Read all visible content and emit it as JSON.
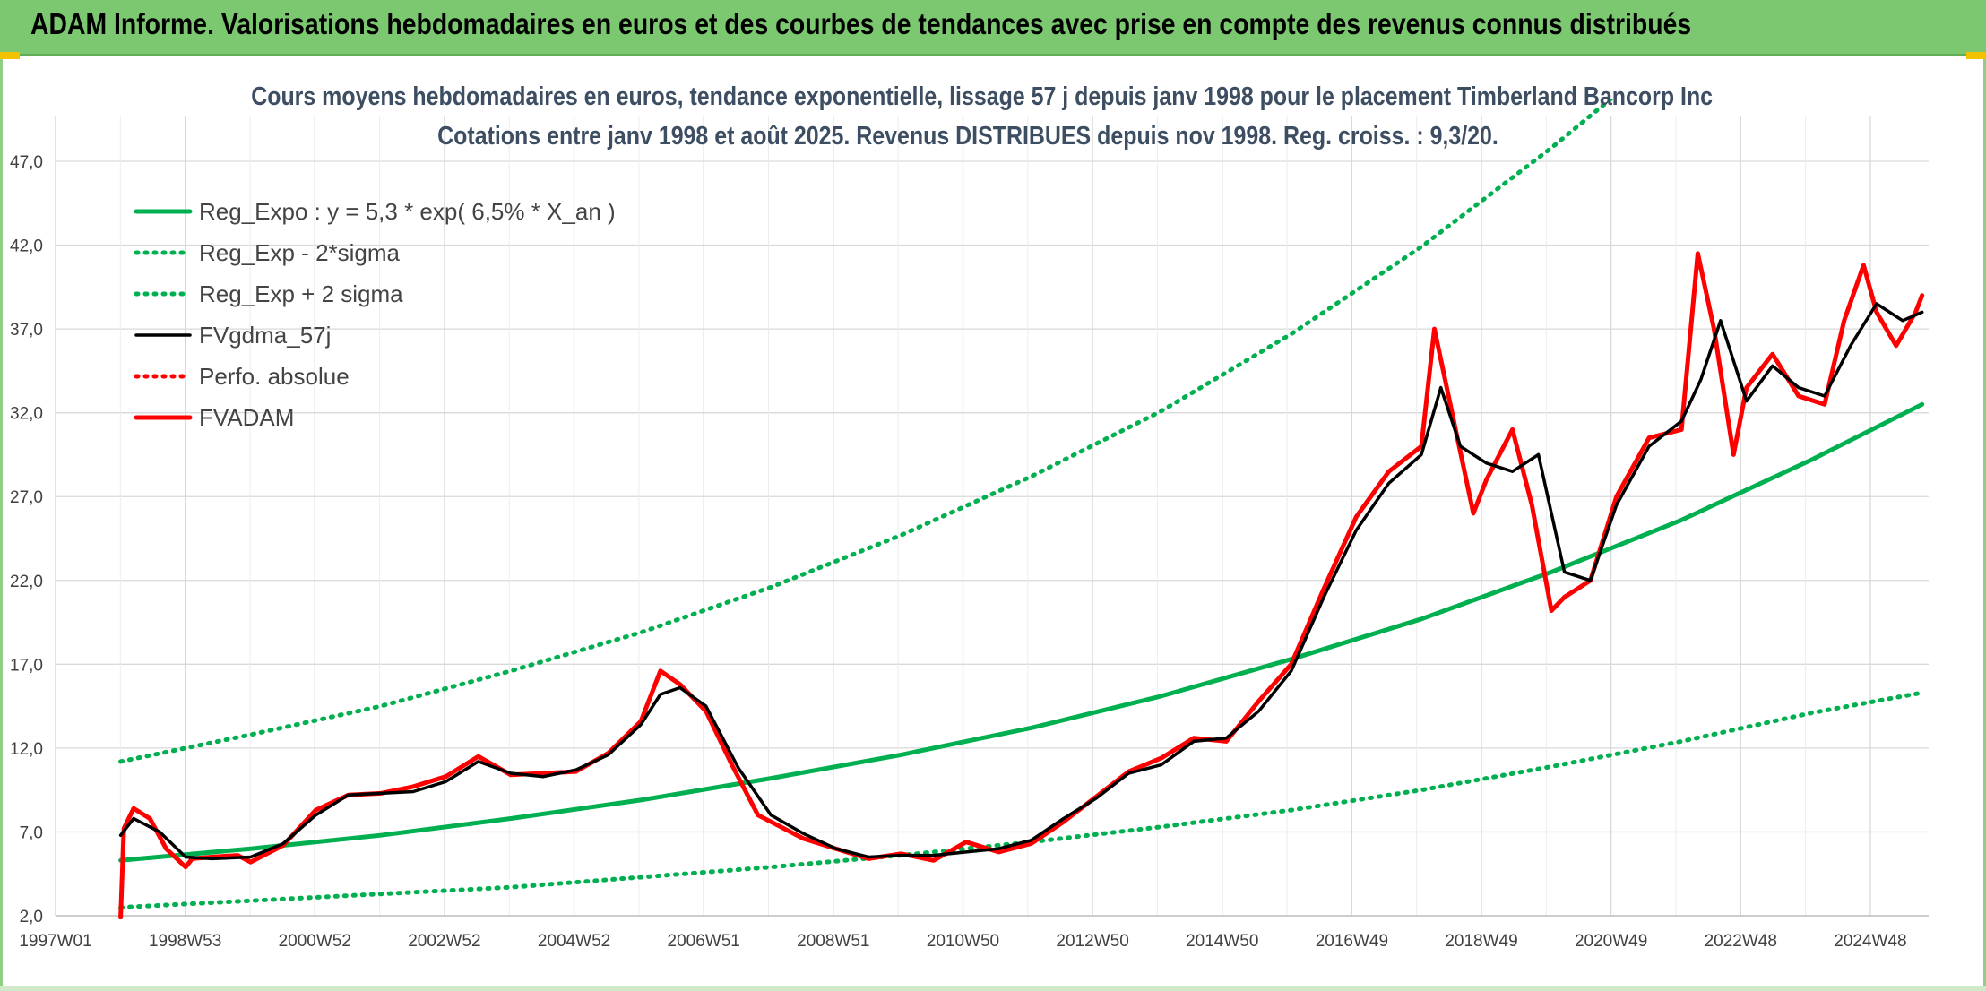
{
  "header": {
    "title": "ADAM Informe. Valorisations hebdomadaires en euros et des courbes de tendances avec prise en compte des revenus connus distribués"
  },
  "colors": {
    "header_bg": "#7cc870",
    "trend_green": "#00b050",
    "price_red": "#ff0000",
    "smoothed_black": "#000000",
    "grid": "#d9d9d9"
  },
  "chart_data": {
    "type": "line",
    "title": "Cours moyens hebdomadaires en euros, tendance exponentielle, lissage 57 j depuis janv 1998 pour le placement Timberland Bancorp Inc",
    "subtitle": "Cotations entre janv 1998 et août 2025. Revenus DISTRIBUES depuis nov 1998. Reg. croiss. : 9,3/20.",
    "xlabel": "",
    "ylabel": "",
    "x_tick_labels": [
      "1997W01",
      "1998W53",
      "2000W52",
      "2002W52",
      "2004W52",
      "2006W51",
      "2008W51",
      "2010W50",
      "2012W50",
      "2014W50",
      "2016W49",
      "2018W49",
      "2020W49",
      "2022W48",
      "2024W48"
    ],
    "y_tick_labels": [
      "2,0",
      "7,0",
      "12,0",
      "17,0",
      "22,0",
      "27,0",
      "32,0",
      "37,0",
      "42,0",
      "47,0"
    ],
    "ylim": [
      2,
      47
    ],
    "xlim": [
      1997.0,
      2025.8
    ],
    "grid": true,
    "legend_position": "top-left",
    "series": [
      {
        "name": "Reg_Expo : y = 5,3 * exp( 6,5% *  X_an )",
        "style": "solid-thick",
        "color": "#00b050",
        "x": [
          1998.0,
          2000.0,
          2002.0,
          2004.0,
          2006.0,
          2008.0,
          2010.0,
          2012.0,
          2014.0,
          2016.0,
          2018.0,
          2020.0,
          2022.0,
          2024.0,
          2025.7
        ],
        "y": [
          5.3,
          6.0,
          6.8,
          7.8,
          8.9,
          10.2,
          11.6,
          13.2,
          15.1,
          17.3,
          19.7,
          22.5,
          25.6,
          29.2,
          32.5
        ]
      },
      {
        "name": "Reg_Exp - 2*sigma",
        "style": "dotted",
        "color": "#00b050",
        "x": [
          1998.0,
          2000.0,
          2002.0,
          2004.0,
          2006.0,
          2008.0,
          2010.0,
          2012.0,
          2014.0,
          2016.0,
          2018.0,
          2020.0,
          2022.0,
          2024.0,
          2025.7
        ],
        "y": [
          2.5,
          2.9,
          3.3,
          3.7,
          4.3,
          4.9,
          5.6,
          6.4,
          7.3,
          8.3,
          9.5,
          10.9,
          12.4,
          14.1,
          15.3
        ]
      },
      {
        "name": "Reg_Exp + 2 sigma",
        "style": "dotted",
        "color": "#00b050",
        "x": [
          1998.0,
          2000.0,
          2002.0,
          2004.0,
          2006.0,
          2008.0,
          2010.0,
          2012.0,
          2014.0,
          2016.0,
          2018.0,
          2020.0,
          2021.0
        ],
        "y": [
          11.2,
          12.8,
          14.5,
          16.6,
          18.9,
          21.6,
          24.7,
          28.2,
          32.1,
          36.7,
          41.9,
          47.8,
          51.0
        ]
      },
      {
        "name": "FVgdma_57j",
        "style": "solid",
        "color": "#000000",
        "x": [
          1998.0,
          1998.2,
          1998.6,
          1999.0,
          1999.4,
          2000.0,
          2000.5,
          2001.0,
          2001.5,
          2002.0,
          2002.5,
          2003.0,
          2003.5,
          2004.0,
          2004.5,
          2005.0,
          2005.5,
          2006.0,
          2006.3,
          2006.6,
          2007.0,
          2007.5,
          2008.0,
          2008.5,
          2009.0,
          2009.5,
          2010.0,
          2010.5,
          2011.0,
          2011.5,
          2012.0,
          2012.5,
          2013.0,
          2013.5,
          2014.0,
          2014.5,
          2015.0,
          2015.5,
          2016.0,
          2016.5,
          2017.0,
          2017.5,
          2018.0,
          2018.3,
          2018.6,
          2019.0,
          2019.4,
          2019.8,
          2020.2,
          2020.6,
          2021.0,
          2021.5,
          2022.0,
          2022.3,
          2022.6,
          2023.0,
          2023.4,
          2023.8,
          2024.2,
          2024.6,
          2025.0,
          2025.4,
          2025.7
        ],
        "y": [
          6.8,
          7.8,
          7.0,
          5.5,
          5.4,
          5.5,
          6.3,
          8.0,
          9.2,
          9.3,
          9.4,
          10.0,
          11.2,
          10.5,
          10.3,
          10.7,
          11.6,
          13.4,
          15.2,
          15.6,
          14.5,
          10.8,
          8.0,
          6.9,
          6.0,
          5.5,
          5.6,
          5.6,
          5.8,
          6.0,
          6.5,
          7.8,
          9.0,
          10.5,
          11.0,
          12.4,
          12.6,
          14.2,
          16.6,
          21.0,
          25.0,
          27.8,
          29.5,
          33.5,
          30.0,
          29.0,
          28.5,
          29.5,
          22.5,
          22.0,
          26.5,
          30.0,
          31.5,
          34.0,
          37.5,
          32.7,
          34.8,
          33.5,
          33.0,
          36.0,
          38.5,
          37.5,
          38.0
        ]
      },
      {
        "name": "Perfo. absolue",
        "style": "dotted",
        "color": "#ff0000",
        "x": [],
        "y": []
      },
      {
        "name": "FVADAM",
        "style": "solid-thick",
        "color": "#ff0000",
        "x": [
          1998.0,
          1998.05,
          1998.2,
          1998.45,
          1998.7,
          1999.0,
          1999.1,
          1999.4,
          1999.8,
          2000.0,
          2000.5,
          2001.0,
          2001.5,
          2002.0,
          2002.5,
          2003.0,
          2003.5,
          2004.0,
          2004.5,
          2005.0,
          2005.5,
          2006.0,
          2006.3,
          2006.6,
          2007.0,
          2007.4,
          2007.8,
          2008.0,
          2008.5,
          2009.0,
          2009.5,
          2010.0,
          2010.5,
          2011.0,
          2011.5,
          2012.0,
          2012.5,
          2013.0,
          2013.5,
          2014.0,
          2014.5,
          2015.0,
          2015.5,
          2016.0,
          2016.5,
          2017.0,
          2017.5,
          2018.0,
          2018.2,
          2018.5,
          2018.8,
          2019.0,
          2019.4,
          2019.7,
          2020.0,
          2020.2,
          2020.6,
          2021.0,
          2021.5,
          2022.0,
          2022.25,
          2022.5,
          2022.8,
          2023.0,
          2023.4,
          2023.8,
          2024.2,
          2024.5,
          2024.8,
          2025.0,
          2025.3,
          2025.6,
          2025.7
        ],
        "y": [
          1.9,
          7.2,
          8.4,
          7.8,
          6.0,
          4.9,
          5.4,
          5.5,
          5.6,
          5.2,
          6.2,
          8.3,
          9.2,
          9.3,
          9.7,
          10.3,
          11.5,
          10.4,
          10.5,
          10.6,
          11.7,
          13.6,
          16.6,
          15.8,
          14.2,
          11.0,
          8.0,
          7.6,
          6.6,
          6.0,
          5.4,
          5.7,
          5.3,
          6.4,
          5.8,
          6.3,
          7.6,
          9.1,
          10.6,
          11.4,
          12.6,
          12.4,
          14.8,
          17.0,
          21.5,
          25.8,
          28.5,
          30.0,
          37.0,
          31.5,
          26.0,
          28.0,
          31.0,
          26.5,
          20.2,
          21.0,
          22.0,
          27.0,
          30.5,
          31.0,
          41.5,
          37.0,
          29.5,
          33.5,
          35.5,
          33.0,
          32.5,
          37.5,
          40.8,
          38.0,
          36.0,
          38.0,
          39.0
        ]
      }
    ]
  }
}
